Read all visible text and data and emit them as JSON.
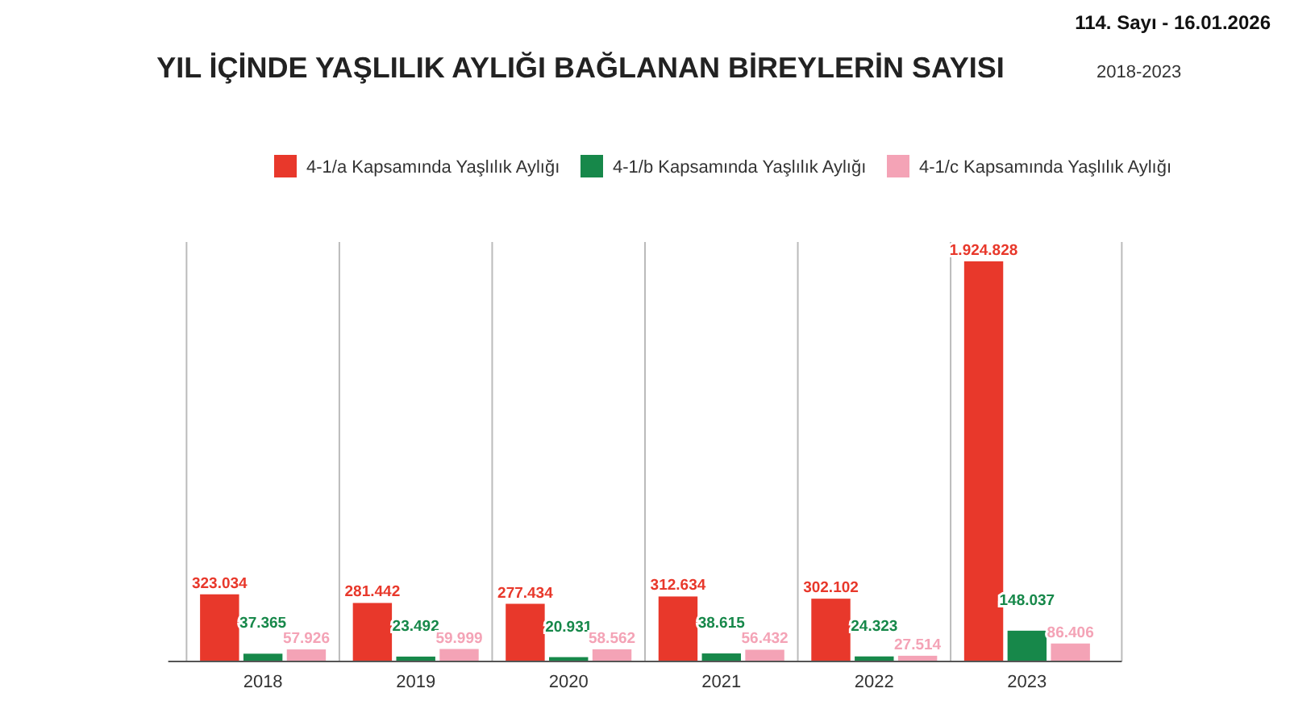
{
  "chart_data": {
    "type": "bar",
    "title": "YIL İÇİNDE YAŞLILIK AYLIĞI BAĞLANAN BİREYLERİN SAYISI",
    "subtitle": "2018-2023",
    "annotations": [
      "114. Sayı - 16.01.2026"
    ],
    "categories": [
      "2018",
      "2019",
      "2020",
      "2021",
      "2022",
      "2023"
    ],
    "series": [
      {
        "name": "4-1/a Kapsamında Yaşlılık Aylığı",
        "color": "#e8382b",
        "values": [
          323034,
          281442,
          277434,
          312634,
          302102,
          1924828
        ],
        "value_labels": [
          "323.034",
          "281.442",
          "277.434",
          "312.634",
          "302.102",
          "1.924.828"
        ]
      },
      {
        "name": "4-1/b Kapsamında Yaşlılık Aylığı",
        "color": "#17884a",
        "values": [
          37365,
          23492,
          20931,
          38615,
          24323,
          148037
        ],
        "value_labels": [
          "37.365",
          "23.492",
          "20.931",
          "38.615",
          "24.323",
          "148.037"
        ]
      },
      {
        "name": "4-1/c Kapsamında Yaşlılık Aylığı",
        "color": "#f4a3b6",
        "values": [
          57926,
          59999,
          58562,
          56432,
          27514,
          86406
        ],
        "value_labels": [
          "57.926",
          "59.999",
          "58.562",
          "56.432",
          "27.514",
          "86.406"
        ]
      }
    ],
    "legend": "top"
  }
}
